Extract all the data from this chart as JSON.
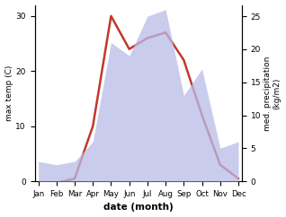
{
  "months": [
    "Jan",
    "Feb",
    "Mar",
    "Apr",
    "May",
    "Jun",
    "Jul",
    "Aug",
    "Sep",
    "Oct",
    "Nov",
    "Dec"
  ],
  "temp": [
    -0.5,
    -0.3,
    0.5,
    10,
    30,
    24,
    26,
    27,
    22,
    12,
    3,
    0.5
  ],
  "precip": [
    3,
    2.5,
    3,
    6,
    21,
    19,
    25,
    26,
    13,
    17,
    5,
    6
  ],
  "temp_color": "#c0392b",
  "precip_color_fill": "#b8bce8",
  "bg_color": "#ffffff",
  "ylabel_left": "max temp (C)",
  "ylabel_right": "med. precipitation\n(kg/m2)",
  "xlabel": "date (month)",
  "ylim_left": [
    0,
    32
  ],
  "ylim_right": [
    0,
    26.7
  ],
  "yticks_left": [
    0,
    10,
    20,
    30
  ],
  "yticks_right": [
    0,
    5,
    10,
    15,
    20,
    25
  ],
  "temp_lw": 1.8
}
